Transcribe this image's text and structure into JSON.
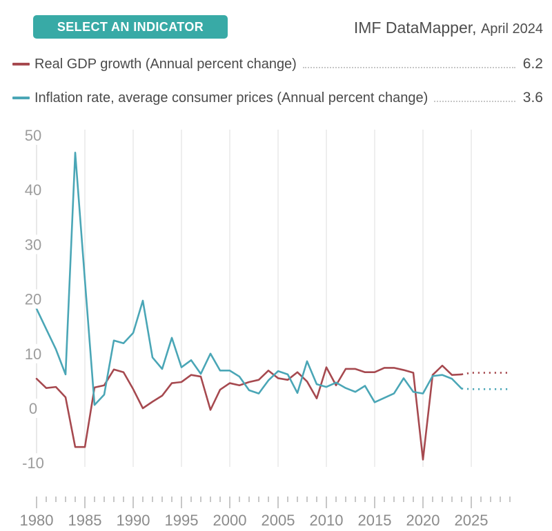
{
  "header": {
    "button_label": "SELECT AN INDICATOR",
    "source_name": "IMF DataMapper,",
    "source_date": "April 2024"
  },
  "legend": {
    "items": [
      {
        "label": "Real GDP growth (Annual percent change)",
        "value": "6.2",
        "color": "#a6494f"
      },
      {
        "label": "Inflation rate, average consumer prices (Annual percent change)",
        "value": "3.6",
        "color": "#4aa6b6"
      }
    ]
  },
  "colors": {
    "accent_button": "#38aaa6",
    "gdp_line": "#a6494f",
    "inflation_line": "#4aa6b6",
    "gridline": "#dcdcdc",
    "axis_line": "#d2d2d2",
    "axis_label": "#9c9c9c",
    "ruler_tick": "#8f8f8f",
    "ruler_label": "#8b8b8b",
    "text": "#4a4a4a"
  },
  "chart_data": {
    "type": "line",
    "title": "",
    "xlabel": "",
    "ylabel": "",
    "grid": "vertical-only",
    "legend_position": "top",
    "ylim": [
      -10,
      50
    ],
    "xlim": [
      1980,
      2029
    ],
    "y_ticks": [
      50,
      40,
      30,
      20,
      10,
      0,
      -10
    ],
    "grid_years": [
      1985,
      1990,
      1995,
      2000,
      2005,
      2010,
      2015,
      2020,
      2025
    ],
    "x_axis_labels": [
      1980,
      1985,
      1990,
      1995,
      2000,
      2005,
      2010,
      2015,
      2020,
      2025
    ],
    "x": [
      1980,
      1981,
      1982,
      1983,
      1984,
      1985,
      1986,
      1987,
      1988,
      1989,
      1990,
      1991,
      1992,
      1993,
      1994,
      1995,
      1996,
      1997,
      1998,
      1999,
      2000,
      2001,
      2002,
      2003,
      2004,
      2005,
      2006,
      2007,
      2008,
      2009,
      2010,
      2011,
      2012,
      2013,
      2014,
      2015,
      2016,
      2017,
      2018,
      2019,
      2020,
      2021,
      2022,
      2023,
      2024
    ],
    "series": [
      {
        "name": "Real GDP growth (Annual percent change)",
        "color": "#a6494f",
        "latest_value": 6.2,
        "values": [
          5.4,
          3.7,
          3.9,
          2.0,
          -7.1,
          -7.1,
          3.8,
          4.2,
          7.1,
          6.6,
          3.5,
          0.0,
          1.2,
          2.3,
          4.6,
          4.8,
          6.1,
          5.8,
          -0.3,
          3.4,
          4.6,
          4.2,
          4.8,
          5.2,
          6.9,
          5.5,
          5.2,
          6.6,
          4.9,
          1.8,
          7.5,
          4.2,
          7.2,
          7.2,
          6.6,
          6.6,
          7.4,
          7.4,
          7.0,
          6.5,
          -9.4,
          6.1,
          7.8,
          6.1,
          6.2
        ]
      },
      {
        "name": "Inflation rate, average consumer prices (Annual percent change)",
        "color": "#4aa6b6",
        "latest_value": 3.6,
        "values": [
          18.2,
          14.5,
          10.8,
          6.2,
          46.8,
          23.5,
          0.6,
          2.5,
          12.4,
          11.9,
          13.8,
          19.7,
          9.3,
          7.2,
          12.9,
          7.5,
          8.8,
          6.3,
          10.0,
          6.9,
          6.9,
          5.8,
          3.3,
          2.7,
          5.1,
          6.8,
          6.2,
          2.8,
          8.6,
          4.4,
          3.9,
          4.7,
          3.7,
          3.0,
          4.1,
          1.1,
          1.9,
          2.7,
          5.5,
          3.0,
          2.7,
          5.9,
          6.1,
          5.4,
          3.6
        ]
      }
    ],
    "projection": {
      "style": "dotted",
      "x": [
        2024,
        2025,
        2026,
        2027,
        2028,
        2029
      ],
      "series": [
        {
          "name": "Real GDP growth (Annual percent change)",
          "color": "#a6494f",
          "values": [
            6.2,
            6.5,
            6.5,
            6.5,
            6.5,
            6.5
          ]
        },
        {
          "name": "Inflation rate, average consumer prices (Annual percent change)",
          "color": "#4aa6b6",
          "values": [
            3.6,
            3.5,
            3.5,
            3.5,
            3.5,
            3.5
          ]
        }
      ]
    }
  }
}
